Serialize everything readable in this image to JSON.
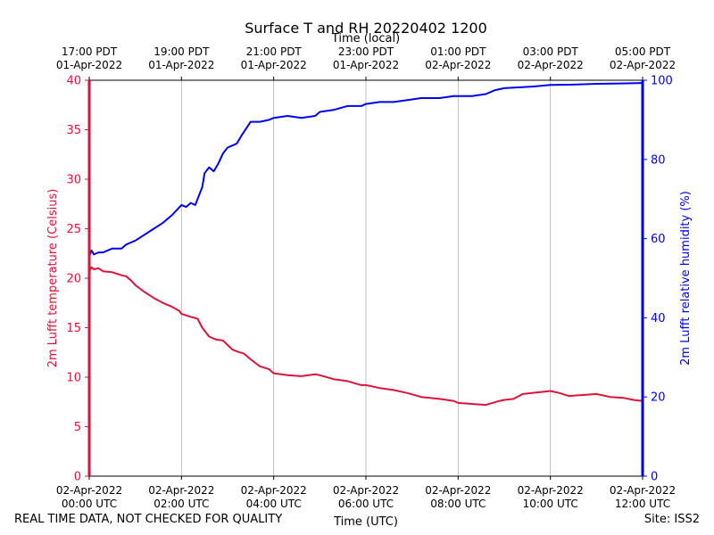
{
  "chart_data": {
    "type": "line",
    "title": "Surface T and RH 20220402 1200",
    "xlabel_bottom": "Time (UTC)",
    "xlabel_top": "Time (local)",
    "ylabel_left": "2m Lufft temperature (Celsius)",
    "ylabel_right": "2m Lufft relative humidity (%)",
    "x_range_hours_utc": [
      0,
      12
    ],
    "ylim_left": [
      0,
      40
    ],
    "ylim_right": [
      0,
      100
    ],
    "y_ticks_left": [
      "0",
      "5",
      "10",
      "15",
      "20",
      "25",
      "30",
      "35",
      "40"
    ],
    "y_ticks_right": [
      "0",
      "20",
      "40",
      "60",
      "80",
      "100"
    ],
    "x_ticks_bottom": [
      {
        "line1": "02-Apr-2022",
        "line2": "00:00 UTC"
      },
      {
        "line1": "02-Apr-2022",
        "line2": "02:00 UTC"
      },
      {
        "line1": "02-Apr-2022",
        "line2": "04:00 UTC"
      },
      {
        "line1": "02-Apr-2022",
        "line2": "06:00 UTC"
      },
      {
        "line1": "02-Apr-2022",
        "line2": "08:00 UTC"
      },
      {
        "line1": "02-Apr-2022",
        "line2": "10:00 UTC"
      },
      {
        "line1": "02-Apr-2022",
        "line2": "12:00 UTC"
      }
    ],
    "x_ticks_top": [
      {
        "line1": "17:00 PDT",
        "line2": "01-Apr-2022"
      },
      {
        "line1": "19:00 PDT",
        "line2": "01-Apr-2022"
      },
      {
        "line1": "21:00 PDT",
        "line2": "01-Apr-2022"
      },
      {
        "line1": "23:00 PDT",
        "line2": "01-Apr-2022"
      },
      {
        "line1": "01:00 PDT",
        "line2": "02-Apr-2022"
      },
      {
        "line1": "03:00 PDT",
        "line2": "02-Apr-2022"
      },
      {
        "line1": "05:00 PDT",
        "line2": "02-Apr-2022"
      }
    ],
    "grid": "vertical",
    "series": [
      {
        "name": "2m Lufft temperature",
        "axis": "left",
        "color": "#dc143c",
        "x": [
          0,
          0.05,
          0.1,
          0.2,
          0.3,
          0.5,
          0.7,
          0.8,
          0.9,
          1.0,
          1.2,
          1.4,
          1.6,
          1.8,
          1.95,
          2.0,
          2.2,
          2.35,
          2.45,
          2.6,
          2.75,
          2.9,
          3.1,
          3.2,
          3.35,
          3.5,
          3.7,
          3.9,
          4.0,
          4.3,
          4.6,
          4.9,
          5.0,
          5.3,
          5.6,
          5.9,
          6.0,
          6.3,
          6.6,
          6.9,
          7.2,
          7.6,
          7.9,
          8.0,
          8.3,
          8.6,
          8.9,
          9.0,
          9.2,
          9.4,
          9.6,
          9.8,
          10.0,
          10.2,
          10.4,
          10.7,
          11.0,
          11.3,
          11.6,
          11.8,
          12.0
        ],
        "y": [
          20.7,
          21.1,
          20.9,
          21.0,
          20.7,
          20.6,
          20.3,
          20.2,
          19.8,
          19.3,
          18.6,
          18.0,
          17.5,
          17.1,
          16.7,
          16.4,
          16.1,
          15.9,
          15.0,
          14.1,
          13.8,
          13.7,
          12.8,
          12.6,
          12.4,
          11.8,
          11.1,
          10.8,
          10.4,
          10.2,
          10.1,
          10.3,
          10.2,
          9.8,
          9.6,
          9.2,
          9.2,
          8.9,
          8.7,
          8.4,
          8.0,
          7.8,
          7.6,
          7.4,
          7.3,
          7.2,
          7.6,
          7.7,
          7.8,
          8.3,
          8.4,
          8.5,
          8.6,
          8.4,
          8.1,
          8.2,
          8.3,
          8.0,
          7.9,
          7.7,
          7.6
        ]
      },
      {
        "name": "2m Lufft relative humidity",
        "axis": "right",
        "color": "#0000ee",
        "x": [
          0,
          0.05,
          0.1,
          0.2,
          0.3,
          0.5,
          0.7,
          0.8,
          0.9,
          1.0,
          1.2,
          1.4,
          1.6,
          1.8,
          2.0,
          2.1,
          2.2,
          2.3,
          2.35,
          2.45,
          2.5,
          2.6,
          2.7,
          2.8,
          2.9,
          3.0,
          3.1,
          3.2,
          3.3,
          3.5,
          3.7,
          3.9,
          4.0,
          4.3,
          4.6,
          4.9,
          5.0,
          5.3,
          5.6,
          5.9,
          6.0,
          6.3,
          6.6,
          6.9,
          7.2,
          7.6,
          7.9,
          8.0,
          8.3,
          8.6,
          8.8,
          9.0,
          9.3,
          9.6,
          9.8,
          10.0,
          10.5,
          11.0,
          11.5,
          12.0
        ],
        "y": [
          55.5,
          57.0,
          56.0,
          56.5,
          56.5,
          57.5,
          57.5,
          58.5,
          59.0,
          59.5,
          61.0,
          62.5,
          64.0,
          66.0,
          68.5,
          68.0,
          69.0,
          68.5,
          70.0,
          73.0,
          76.5,
          78.0,
          77.0,
          79.0,
          81.5,
          83.0,
          83.5,
          84.0,
          86.0,
          89.5,
          89.5,
          90.0,
          90.5,
          91.0,
          90.5,
          91.0,
          92.0,
          92.5,
          93.5,
          93.5,
          94.0,
          94.5,
          94.5,
          95.0,
          95.5,
          95.5,
          96.0,
          96.0,
          96.0,
          96.5,
          97.5,
          98.0,
          98.2,
          98.4,
          98.6,
          98.8,
          98.9,
          99.1,
          99.2,
          99.3
        ]
      }
    ]
  },
  "footer": {
    "quality_note": "REAL TIME DATA, NOT CHECKED FOR QUALITY",
    "site": "Site: ISS2"
  }
}
